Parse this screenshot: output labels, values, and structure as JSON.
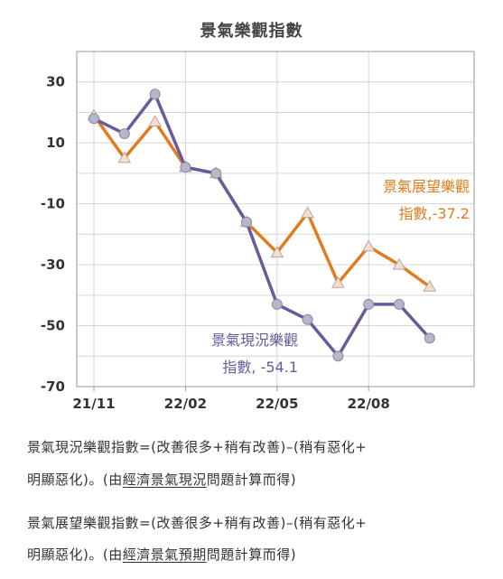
{
  "chart_data": {
    "type": "line",
    "title": "景氣樂觀指數",
    "x": [
      "21/11",
      "21/12",
      "22/01",
      "22/02",
      "22/03",
      "22/04",
      "22/05",
      "22/06",
      "22/07",
      "22/08",
      "22/09",
      "22/10"
    ],
    "x_tick_labels": [
      "21/11",
      "22/02",
      "22/05",
      "22/08"
    ],
    "y_ticks": [
      30,
      10,
      -10,
      -30,
      -50,
      -70
    ],
    "ylim": [
      -70,
      40
    ],
    "grid": true,
    "series": [
      {
        "name": "景氣展望樂觀指數",
        "color": "#e07b1e",
        "marker": "triangle",
        "values": [
          19,
          5,
          17,
          2,
          0,
          -16,
          -26,
          -13,
          -36,
          -24,
          -30,
          -37.2
        ]
      },
      {
        "name": "景氣現況樂觀指數",
        "color": "#6a5a9c",
        "marker": "circle",
        "values": [
          18,
          13,
          26,
          2,
          0,
          -16,
          -43,
          -48,
          -60,
          -43,
          -43,
          -54.1
        ]
      }
    ],
    "annotations": [
      {
        "series": "景氣展望樂觀指數",
        "line1": "景氣展望樂觀",
        "line2": "指數,-37.2"
      },
      {
        "series": "景氣現況樂觀指數",
        "line1": "景氣現況樂觀",
        "line2": "指數, -54.1"
      }
    ]
  },
  "notes": [
    {
      "line1": "景氣現況樂觀指數=(改善很多+稍有改善)–(稍有惡化+",
      "line2_pre": "明顯惡化)。(由",
      "line2_u": "經濟景氣現況",
      "line2_post": "問題計算而得)"
    },
    {
      "line1": "景氣展望樂觀指數=(改善很多+稍有改善)–(稍有惡化+",
      "line2_pre": "明顯惡化)。(由",
      "line2_u": "經濟景氣預期",
      "line2_post": "問題計算而得)"
    }
  ],
  "colors": {
    "grid": "#d6d6d6",
    "frame": "#9a9a9a",
    "background": "#ffffff"
  }
}
